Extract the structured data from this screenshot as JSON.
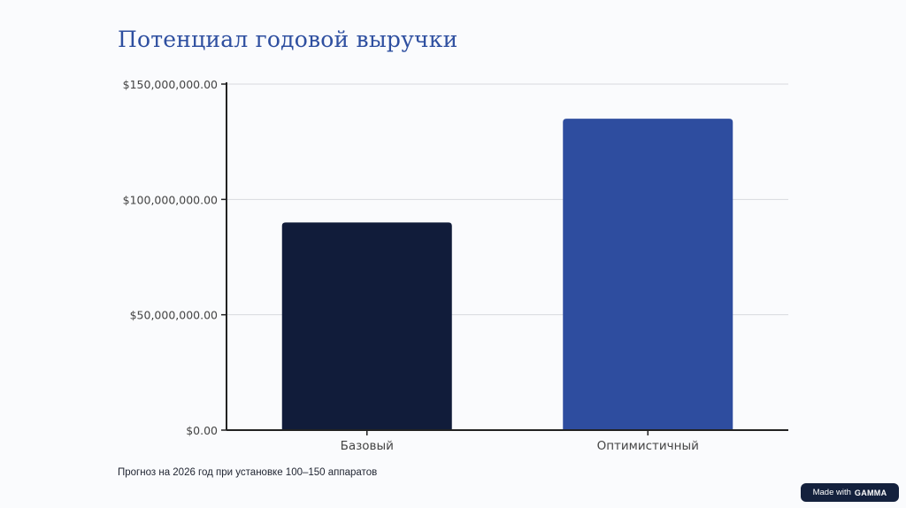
{
  "title": "Потенциал годовой выручки",
  "caption": "Прогноз на 2026 год при установке 100–150 аппаратов",
  "badge": {
    "prefix": "Made with",
    "brand": "GAMMA"
  },
  "colors": {
    "title": "#2e4fa0",
    "axis": "#222222",
    "grid": "#d8dade",
    "text": "#444444"
  },
  "chart_data": {
    "type": "bar",
    "categories": [
      "Базовый",
      "Оптимистичный"
    ],
    "values": [
      90000000,
      135000000
    ],
    "colors": [
      "#111c3a",
      "#2e4d9f"
    ],
    "ylim": [
      0,
      150000000
    ],
    "yticks": [
      0,
      50000000,
      100000000,
      150000000
    ],
    "ytick_labels": [
      "$0.00",
      "$50,000,000.00",
      "$100,000,000.00",
      "$150,000,000.00"
    ],
    "grid": true,
    "xlabel": "",
    "ylabel": ""
  }
}
